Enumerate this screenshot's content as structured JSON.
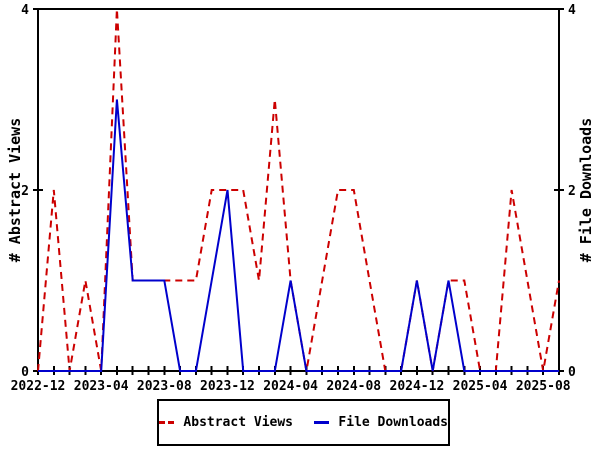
{
  "chart_data": {
    "type": "line",
    "title": "",
    "ylabel": "# Abstract Views",
    "y2label": "# File Downloads",
    "ylim": [
      0,
      4
    ],
    "y_ticks": [
      0,
      2,
      4
    ],
    "x_tick_step": 4,
    "grid": false,
    "legend_position": "bottom-center",
    "months": [
      "2022-12",
      "2023-01",
      "2023-02",
      "2023-03",
      "2023-04",
      "2023-05",
      "2023-06",
      "2023-07",
      "2023-08",
      "2023-09",
      "2023-10",
      "2023-11",
      "2023-12",
      "2024-01",
      "2024-02",
      "2024-03",
      "2024-04",
      "2024-05",
      "2024-06",
      "2024-07",
      "2024-08",
      "2024-09",
      "2024-10",
      "2024-11",
      "2024-12",
      "2025-01",
      "2025-02",
      "2025-03",
      "2025-04",
      "2025-05",
      "2025-06",
      "2025-07",
      "2025-08",
      "2025-09"
    ],
    "series": [
      {
        "name": "Abstract Views",
        "style": "dashed",
        "color": "#cc0000",
        "values": [
          0,
          2,
          0,
          1,
          0,
          4,
          1,
          1,
          1,
          1,
          1,
          2,
          2,
          2,
          1,
          3,
          1,
          0,
          1,
          2,
          2,
          1,
          0,
          0,
          1,
          0,
          1,
          1,
          0,
          0,
          2,
          1,
          0,
          1
        ]
      },
      {
        "name": "File Downloads",
        "style": "solid",
        "color": "#0000cc",
        "values": [
          0,
          0,
          0,
          0,
          0,
          3,
          1,
          1,
          1,
          0,
          0,
          1,
          2,
          0,
          0,
          0,
          1,
          0,
          0,
          0,
          0,
          0,
          0,
          0,
          1,
          0,
          1,
          0,
          0,
          0,
          0,
          0,
          0,
          0
        ]
      }
    ],
    "colors": {
      "red": "#cc0000",
      "blue": "#0000cc",
      "axis": "#000000",
      "background": "#ffffff"
    }
  }
}
